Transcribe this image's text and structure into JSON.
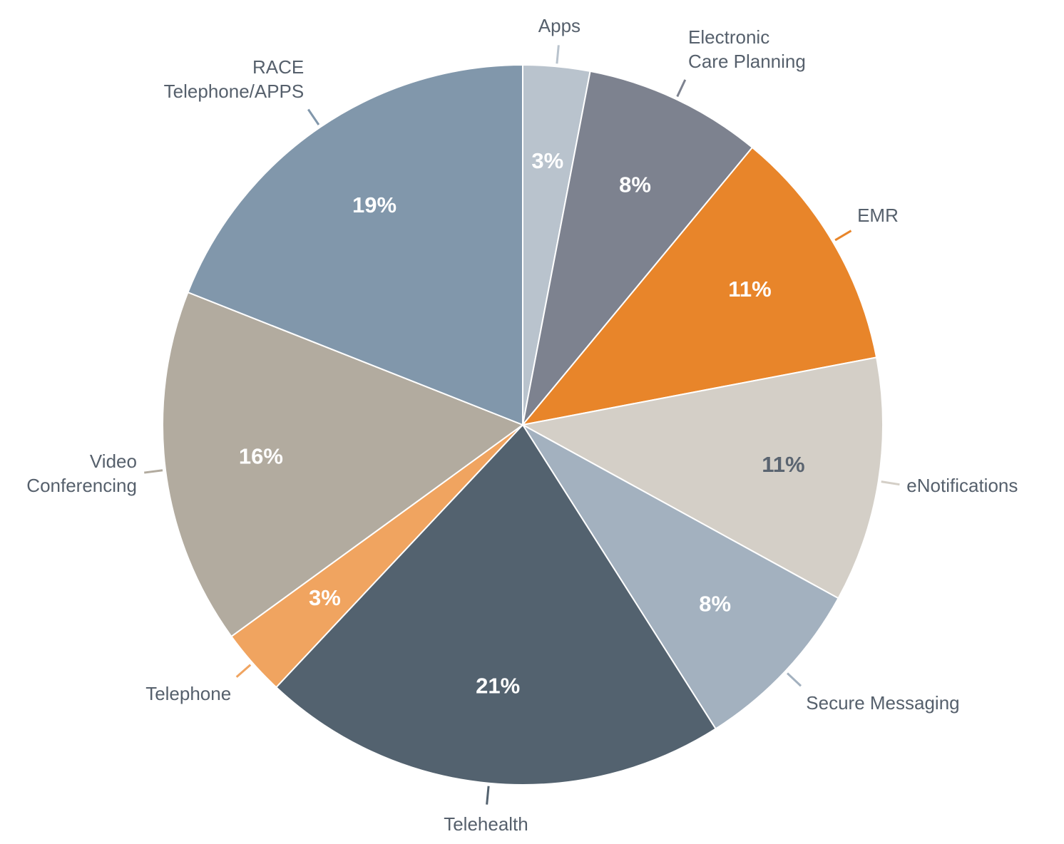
{
  "chart_data": {
    "type": "pie",
    "categories": [
      "Apps",
      "Electronic\nCare Planning",
      "EMR",
      "eNotifications",
      "Secure Messaging",
      "Telehealth",
      "Telephone",
      "Video\nConferencing",
      "RACE\nTelephone/APPS"
    ],
    "values": [
      3,
      8,
      11,
      11,
      8,
      21,
      3,
      16,
      19
    ],
    "value_labels": [
      "3%",
      "8%",
      "11%",
      "11%",
      "8%",
      "21%",
      "3%",
      "16%",
      "19%"
    ],
    "colors": [
      "#b9c3cd",
      "#7d828f",
      "#e8852a",
      "#d4cfc7",
      "#a3b1bf",
      "#53626f",
      "#f0a460",
      "#b2ab9f",
      "#8197ab"
    ],
    "label_colors": [
      "#ffffff",
      "#ffffff",
      "#ffffff",
      "#5a6470",
      "#ffffff",
      "#ffffff",
      "#ffffff",
      "#ffffff",
      "#ffffff"
    ]
  }
}
